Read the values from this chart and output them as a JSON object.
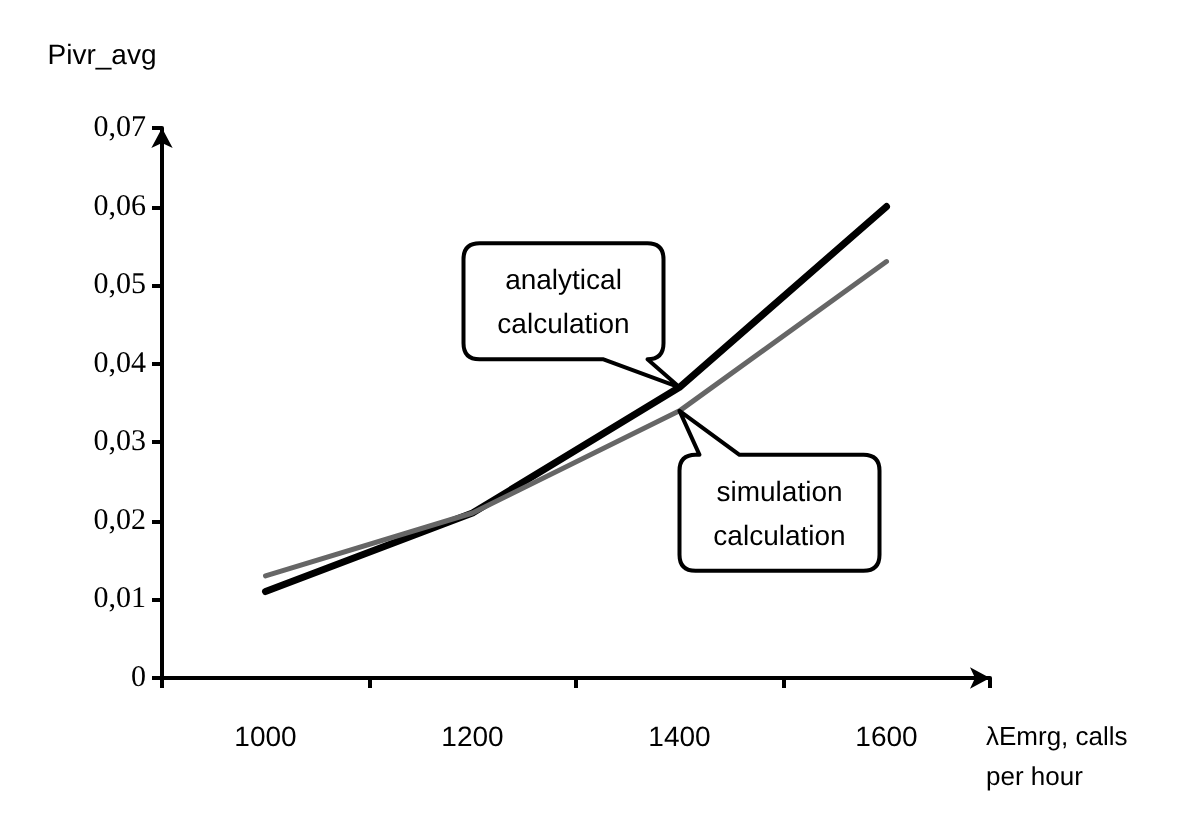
{
  "chart_data": {
    "type": "line",
    "ylabel": "Pivr_avg",
    "xlabel": "λEmrg, calls per hour",
    "categories": [
      "1000",
      "1200",
      "1400",
      "1600"
    ],
    "series": [
      {
        "color": "#000000",
        "values": [
          0.011,
          0.021,
          0.037,
          0.06
        ]
      },
      {
        "color": "#666666",
        "values": [
          0.013,
          0.021,
          0.034,
          0.053
        ]
      }
    ],
    "ylim": [
      0,
      0.07
    ],
    "yticks": [
      {
        "value": 0,
        "label": "0"
      },
      {
        "value": 0.01,
        "label": "0,01"
      },
      {
        "value": 0.02,
        "label": "0,02"
      },
      {
        "value": 0.03,
        "label": "0,03"
      },
      {
        "value": 0.04,
        "label": "0,04"
      },
      {
        "value": 0.05,
        "label": "0,05"
      },
      {
        "value": 0.06,
        "label": "0,06"
      },
      {
        "value": 0.07,
        "label": "0,07"
      }
    ],
    "annotations": [
      {
        "text": "analytical\ncalculation",
        "x": "1400",
        "y": 0.037
      },
      {
        "text": "simulation\ncalculation",
        "x": "1400",
        "y": 0.034
      }
    ],
    "grid": false,
    "marker": "none",
    "line_style": "solid"
  }
}
